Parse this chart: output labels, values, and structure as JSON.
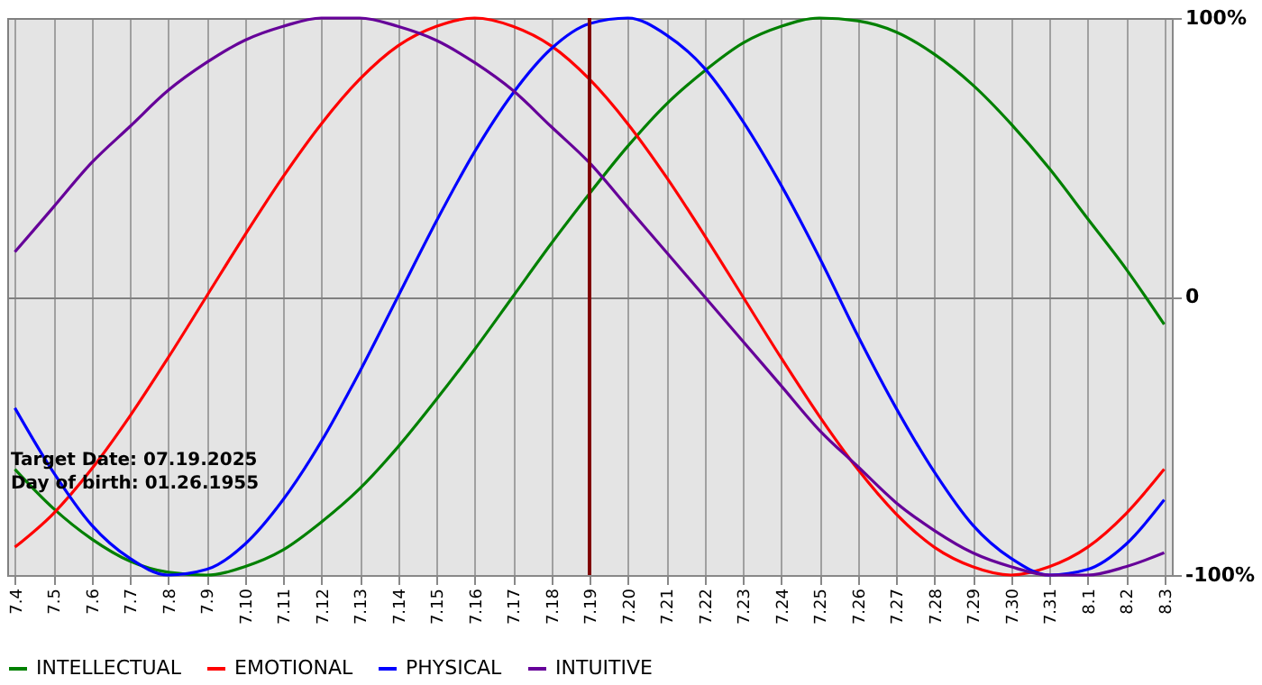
{
  "chart_data": {
    "type": "line",
    "categories": [
      "7.4",
      "7.5",
      "7.6",
      "7.7",
      "7.8",
      "7.9",
      "7.10",
      "7.11",
      "7.12",
      "7.13",
      "7.14",
      "7.15",
      "7.16",
      "7.17",
      "7.18",
      "7.19",
      "7.20",
      "7.21",
      "7.22",
      "7.23",
      "7.24",
      "7.25",
      "7.26",
      "7.27",
      "7.28",
      "7.29",
      "7.30",
      "7.31",
      "8.1",
      "8.2",
      "8.3"
    ],
    "series": [
      {
        "name": "INTELLECTUAL",
        "color": "#008000",
        "values": [
          -62,
          -76,
          -87,
          -95,
          -99,
          -100,
          -97,
          -91,
          -81,
          -69,
          -54,
          -37,
          -19,
          0,
          19,
          37,
          54,
          69,
          81,
          91,
          97,
          100,
          99,
          95,
          87,
          76,
          62,
          46,
          28,
          10,
          -10
        ]
      },
      {
        "name": "EMOTIONAL",
        "color": "#ff0000",
        "values": [
          -90,
          -78,
          -62,
          -43,
          -22,
          0,
          22,
          43,
          62,
          78,
          90,
          97,
          100,
          97,
          90,
          78,
          62,
          43,
          22,
          0,
          -22,
          -43,
          -62,
          -78,
          -90,
          -97,
          -100,
          -97,
          -90,
          -78,
          -62
        ]
      },
      {
        "name": "PHYSICAL",
        "color": "#0000ff",
        "values": [
          -40,
          -63,
          -82,
          -94,
          -100,
          -98,
          -89,
          -73,
          -52,
          -27,
          0,
          27,
          52,
          73,
          89,
          98,
          100,
          94,
          82,
          63,
          40,
          14,
          -14,
          -40,
          -63,
          -82,
          -94,
          -100,
          -98,
          -89,
          -73
        ]
      },
      {
        "name": "INTUITIVE",
        "color": "#660099",
        "values": [
          16,
          32,
          48,
          61,
          74,
          84,
          92,
          97,
          100,
          100,
          97,
          92,
          84,
          74,
          61,
          48,
          32,
          16,
          0,
          -16,
          -32,
          -48,
          -61,
          -74,
          -84,
          -92,
          -97,
          -100,
          -100,
          -97,
          -92
        ]
      }
    ],
    "ylim": [
      -100,
      100
    ],
    "yticks": [
      {
        "value": 100,
        "label": "100%"
      },
      0,
      {
        "value": -100,
        "label": "-100%"
      }
    ],
    "grid": true,
    "legend": "bottom",
    "line_style": "solid",
    "marker": "none",
    "ref_lines": [
      {
        "axis": "x",
        "value": "7.19",
        "color": "#800000"
      }
    ],
    "annotations": [
      "Target Date: 07.19.2025",
      "Day of birth: 01.26.1955"
    ]
  }
}
